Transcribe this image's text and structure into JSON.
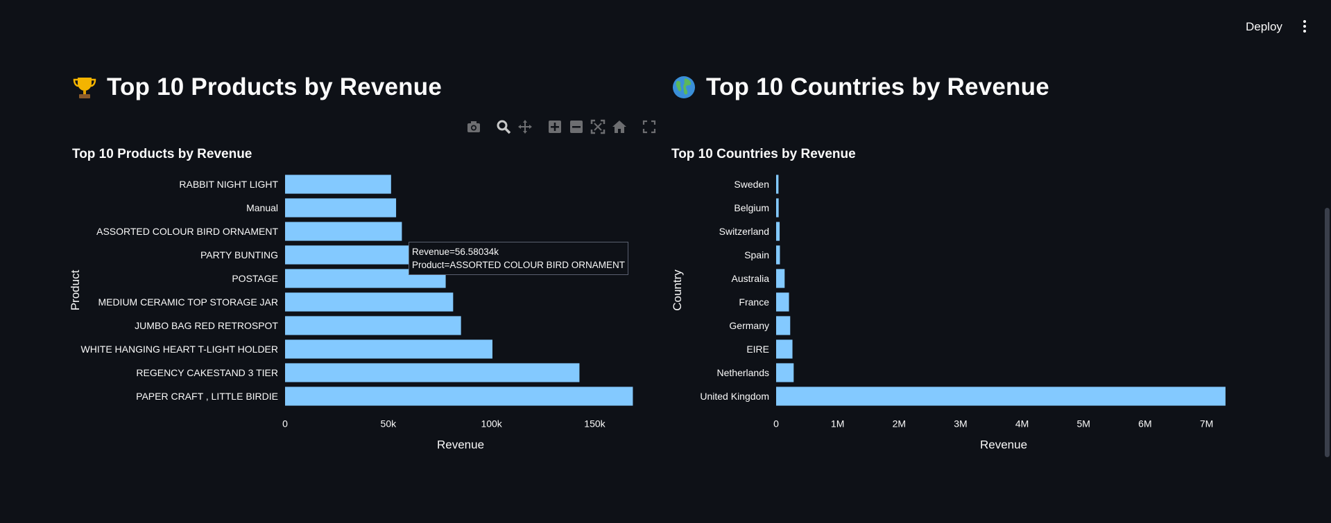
{
  "header": {
    "deploy_label": "Deploy"
  },
  "sections": [
    {
      "heading": "Top 10 Products by Revenue",
      "emoji_icon": "trophy-icon",
      "modebar_icons": [
        "camera-icon",
        "zoom-icon",
        "pan-icon",
        "zoom-in-icon",
        "zoom-out-icon",
        "autoscale-icon",
        "reset-axes-icon",
        "fullscreen-icon"
      ],
      "tooltip": {
        "line1": "Revenue=56.58034k",
        "line2": "Product=ASSORTED COLOUR BIRD ORNAMENT"
      }
    },
    {
      "heading": "Top 10 Countries by Revenue",
      "emoji_icon": "globe-icon"
    }
  ],
  "chart_data": [
    {
      "type": "bar",
      "orientation": "horizontal",
      "title": "Top 10 Products by Revenue",
      "xlabel": "Revenue",
      "ylabel": "Product",
      "categories": [
        "PAPER CRAFT , LITTLE BIRDIE",
        "REGENCY CAKESTAND 3 TIER",
        "WHITE HANGING HEART T-LIGHT HOLDER",
        "JUMBO BAG RED RETROSPOT",
        "MEDIUM CERAMIC TOP STORAGE JAR",
        "POSTAGE",
        "PARTY BUNTING",
        "ASSORTED COLOUR BIRD ORNAMENT",
        "Manual",
        "RABBIT NIGHT LIGHT"
      ],
      "values": [
        168469.6,
        142592.95,
        100448.15,
        85220.78,
        81416.73,
        77803.96,
        68844.33,
        56580.34,
        53779.93,
        51346.2
      ],
      "xlim": [
        0,
        170000
      ],
      "xticks": [
        0,
        50000,
        100000,
        150000
      ],
      "xtick_labels": [
        "0",
        "50k",
        "100k",
        "150k"
      ],
      "bar_color": "#83c9ff"
    },
    {
      "type": "bar",
      "orientation": "horizontal",
      "title": "Top 10 Countries by Revenue",
      "xlabel": "Revenue",
      "ylabel": "Country",
      "categories": [
        "United Kingdom",
        "Netherlands",
        "EIRE",
        "Germany",
        "France",
        "Australia",
        "Spain",
        "Switzerland",
        "Belgium",
        "Sweden"
      ],
      "values": [
        7308391.55,
        285446.34,
        265545.9,
        228867.14,
        209024.05,
        138521.31,
        61577.11,
        57089.9,
        41196.34,
        38378.33
      ],
      "xlim": [
        0,
        7400000
      ],
      "xticks": [
        0,
        1000000,
        2000000,
        3000000,
        4000000,
        5000000,
        6000000,
        7000000
      ],
      "xtick_labels": [
        "0",
        "1M",
        "2M",
        "3M",
        "4M",
        "5M",
        "6M",
        "7M"
      ],
      "bar_color": "#83c9ff"
    }
  ]
}
